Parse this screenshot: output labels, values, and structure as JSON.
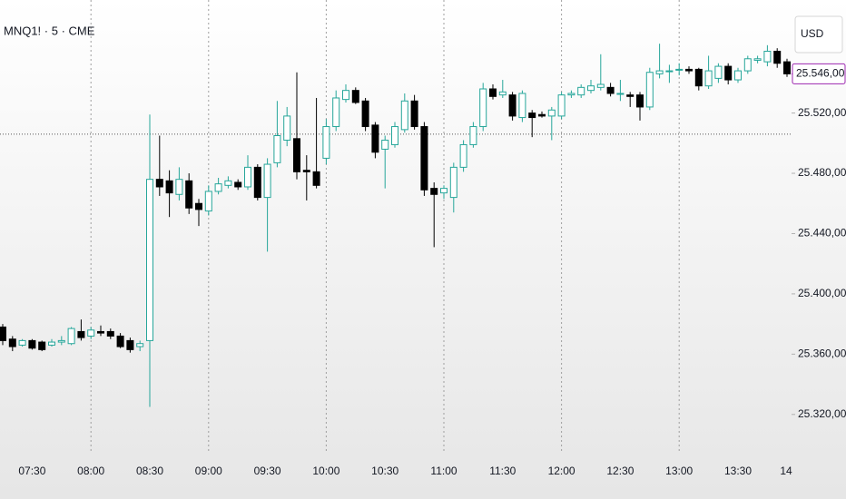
{
  "chart_data": {
    "type": "candlestick",
    "title": "MNQ1! · 5 · CME",
    "currency": "USD",
    "categories": [
      null,
      null,
      null,
      "07:30",
      null,
      null,
      null,
      null,
      null,
      "08:00",
      null,
      null,
      null,
      null,
      null,
      "08:30",
      null,
      null,
      null,
      null,
      null,
      "09:00",
      null,
      null,
      null,
      null,
      null,
      "09:30",
      null,
      null,
      null,
      null,
      null,
      "10:00",
      null,
      null,
      null,
      null,
      null,
      "10:30",
      null,
      null,
      null,
      null,
      null,
      "11:00",
      null,
      null,
      null,
      null,
      null,
      "11:30",
      null,
      null,
      null,
      null,
      null,
      "12:00",
      null,
      null,
      null,
      null,
      null,
      "12:30",
      null,
      null,
      null,
      null,
      null,
      "13:00",
      null,
      null,
      null,
      null,
      null,
      "13:30",
      null,
      null,
      null,
      null,
      null,
      "14"
    ],
    "open": [
      25378,
      25370,
      25366,
      25369,
      25368,
      25366,
      25368,
      25367,
      25375,
      25372,
      25375,
      25375,
      25372,
      25369,
      25365,
      25369,
      25476,
      25475,
      25466,
      25475,
      25460,
      25455,
      25468,
      25472,
      25474,
      25471,
      25484,
      25464,
      25487,
      25502,
      25503,
      25482,
      25481,
      25490,
      25511,
      25529,
      25535,
      25528,
      25512,
      25496,
      25499,
      25509,
      25528,
      25511,
      25470,
      25467,
      25464,
      25484,
      25499,
      25511,
      25536,
      25532,
      25532,
      25517,
      25520,
      25519,
      25518,
      25518,
      25532,
      25532,
      25535,
      25537,
      25537,
      25533,
      25532,
      25532,
      25524,
      25546,
      25548,
      25549,
      25549,
      25549,
      25538,
      25543,
      25551,
      25542,
      25548,
      25555,
      25554,
      25561,
      25554,
      null
    ],
    "high": [
      25380,
      25372,
      25370,
      25370,
      25369,
      25370,
      25372,
      25378,
      25383,
      25378,
      25379,
      25377,
      25374,
      25371,
      25369,
      25519,
      25505,
      25482,
      25484,
      25480,
      25463,
      25472,
      25477,
      25478,
      25476,
      25492,
      25486,
      25490,
      25528,
      25524,
      25547,
      25492,
      25530,
      25516,
      25535,
      25539,
      25537,
      25530,
      25514,
      25505,
      25514,
      25533,
      25532,
      25514,
      25474,
      25472,
      25487,
      25502,
      25514,
      25540,
      25539,
      25542,
      25534,
      25535,
      25522,
      25521,
      25524,
      25534,
      25535,
      25539,
      25542,
      25559,
      25540,
      25542,
      25534,
      25534,
      25550,
      25566,
      25552,
      25553,
      25551,
      25550,
      25558,
      25553,
      25553,
      25550,
      25558,
      25558,
      25565,
      25563,
      25556,
      null
    ],
    "low": [
      25366,
      25362,
      25365,
      25363,
      25362,
      25365,
      25366,
      25366,
      25369,
      25370,
      25372,
      25370,
      25364,
      25361,
      25362,
      25325,
      25465,
      25451,
      25462,
      25453,
      25445,
      25452,
      25466,
      25470,
      25469,
      25469,
      25462,
      25428,
      25484,
      25498,
      25476,
      25462,
      25470,
      25486,
      25508,
      25527,
      25526,
      25508,
      25490,
      25470,
      25497,
      25507,
      25509,
      25465,
      25431,
      25463,
      25454,
      25481,
      25497,
      25508,
      25529,
      25530,
      25515,
      25514,
      25504,
      25517,
      25502,
      25516,
      25530,
      25530,
      25533,
      25535,
      25531,
      25528,
      25524,
      25515,
      25522,
      25543,
      25540,
      25545,
      25546,
      25535,
      25536,
      25540,
      25539,
      25540,
      25546,
      25553,
      25551,
      25550,
      25544,
      null
    ],
    "close": [
      25369,
      25365,
      25369,
      25364,
      25363,
      25368,
      25369,
      25377,
      25371,
      25376,
      25374,
      25372,
      25365,
      25363,
      25367,
      25476,
      25471,
      25467,
      25476,
      25457,
      25456,
      25468,
      25473,
      25475,
      25471,
      25484,
      25464,
      25486,
      25505,
      25518,
      25481,
      25481,
      25472,
      25511,
      25530,
      25535,
      25527,
      25511,
      25494,
      25502,
      25511,
      25528,
      25511,
      25469,
      25466,
      25470,
      25484,
      25499,
      25511,
      25536,
      25531,
      25534,
      25518,
      25533,
      25517,
      25518,
      25522,
      25532,
      25533,
      25537,
      25538,
      25539,
      25533,
      25533,
      25531,
      25524,
      25547,
      25548,
      25548,
      25549,
      25548,
      25538,
      25548,
      25551,
      25542,
      25548,
      25556,
      25556,
      25561,
      25553,
      25546,
      null
    ],
    "up_color": "#26a69a",
    "down_color": "#000000",
    "ylim": [
      25297,
      25595
    ],
    "yticks": [
      {
        "value": 25320,
        "label": "25.320,00"
      },
      {
        "value": 25360,
        "label": "25.360,00"
      },
      {
        "value": 25400,
        "label": "25.400,00"
      },
      {
        "value": 25440,
        "label": "25.440,00"
      },
      {
        "value": 25480,
        "label": "25.480,00"
      },
      {
        "value": 25520,
        "label": "25.520,00"
      }
    ],
    "last_price": {
      "value": 25546,
      "label": "25.546,00"
    },
    "last_price_color": "#9c27b0",
    "hline": 25506
  }
}
